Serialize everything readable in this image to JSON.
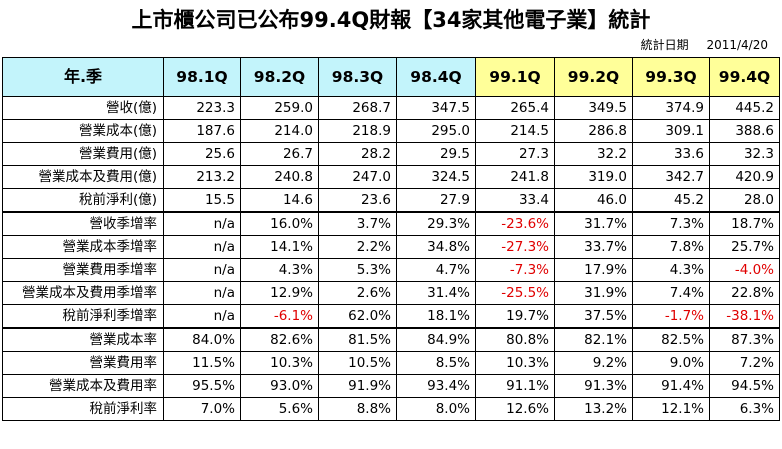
{
  "title": "上市櫃公司已公布99.4Q財報【34家其他電子業】統計",
  "stat_date_label": "統計日期",
  "stat_date": "2011/4/20",
  "chart_data": {
    "type": "table",
    "corner_label": "年.季",
    "columns": [
      "98.1Q",
      "98.2Q",
      "98.3Q",
      "98.4Q",
      "99.1Q",
      "99.2Q",
      "99.3Q",
      "99.4Q"
    ],
    "rows": [
      {
        "label": "營收(億)",
        "values": [
          "223.3",
          "259.0",
          "268.7",
          "347.5",
          "265.4",
          "349.5",
          "374.9",
          "445.2"
        ]
      },
      {
        "label": "營業成本(億)",
        "values": [
          "187.6",
          "214.0",
          "218.9",
          "295.0",
          "214.5",
          "286.8",
          "309.1",
          "388.6"
        ]
      },
      {
        "label": "營業費用(億)",
        "values": [
          "25.6",
          "26.7",
          "28.2",
          "29.5",
          "27.3",
          "32.2",
          "33.6",
          "32.3"
        ]
      },
      {
        "label": "營業成本及費用(億)",
        "values": [
          "213.2",
          "240.8",
          "247.0",
          "324.5",
          "241.8",
          "319.0",
          "342.7",
          "420.9"
        ]
      },
      {
        "label": "稅前淨利(億)",
        "values": [
          "15.5",
          "14.6",
          "23.6",
          "27.9",
          "33.4",
          "46.0",
          "45.2",
          "28.0"
        ]
      },
      {
        "label": "營收季增率",
        "values": [
          "n/a",
          "16.0%",
          "3.7%",
          "29.3%",
          "-23.6%",
          "31.7%",
          "7.3%",
          "18.7%"
        ]
      },
      {
        "label": "營業成本季增率",
        "values": [
          "n/a",
          "14.1%",
          "2.2%",
          "34.8%",
          "-27.3%",
          "33.7%",
          "7.8%",
          "25.7%"
        ]
      },
      {
        "label": "營業費用季增率",
        "values": [
          "n/a",
          "4.3%",
          "5.3%",
          "4.7%",
          "-7.3%",
          "17.9%",
          "4.3%",
          "-4.0%"
        ]
      },
      {
        "label": "營業成本及費用季增率",
        "values": [
          "n/a",
          "12.9%",
          "2.6%",
          "31.4%",
          "-25.5%",
          "31.9%",
          "7.4%",
          "22.8%"
        ]
      },
      {
        "label": "稅前淨利季增率",
        "values": [
          "n/a",
          "-6.1%",
          "62.0%",
          "18.1%",
          "19.7%",
          "37.5%",
          "-1.7%",
          "-38.1%"
        ]
      },
      {
        "label": "營業成本率",
        "values": [
          "84.0%",
          "82.6%",
          "81.5%",
          "84.9%",
          "80.8%",
          "82.1%",
          "82.5%",
          "87.3%"
        ]
      },
      {
        "label": "營業費用率",
        "values": [
          "11.5%",
          "10.3%",
          "10.5%",
          "8.5%",
          "10.3%",
          "9.2%",
          "9.0%",
          "7.2%"
        ]
      },
      {
        "label": "營業成本及費用率",
        "values": [
          "95.5%",
          "93.0%",
          "91.9%",
          "93.4%",
          "91.1%",
          "91.3%",
          "91.4%",
          "94.5%"
        ]
      },
      {
        "label": "稅前淨利率",
        "values": [
          "7.0%",
          "5.6%",
          "8.8%",
          "8.0%",
          "12.6%",
          "13.2%",
          "12.1%",
          "6.3%"
        ]
      }
    ],
    "header_colors": {
      "98": "#c3f4fb",
      "99": "#ffff99"
    },
    "negative_color": "#e00000"
  }
}
